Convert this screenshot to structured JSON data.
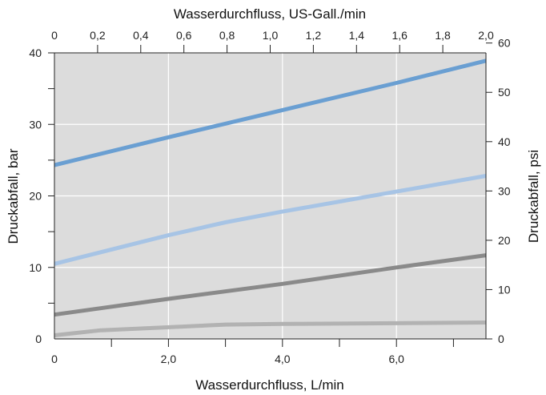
{
  "chart_data": {
    "type": "line",
    "title": "",
    "xlabel_bottom": "Wasserdurchfluss, L/min",
    "xlabel_top": "Wasserdurchfluss, US-Gall./min",
    "ylabel_left": "Druckabfall, bar",
    "ylabel_right": "Druckabfall, psi",
    "xlim_bottom": [
      0,
      7.57
    ],
    "xlim_top": [
      0,
      2.0
    ],
    "ylim_left": [
      0,
      40
    ],
    "ylim_right": [
      0,
      58
    ],
    "x_ticks_bottom": [
      0,
      1,
      2,
      3,
      4,
      5,
      6,
      7
    ],
    "x_ticklabels_bottom": [
      {
        "value": 0,
        "label": "0"
      },
      {
        "value": 2,
        "label": "2,0"
      },
      {
        "value": 4,
        "label": "4,0"
      },
      {
        "value": 6,
        "label": "6,0"
      }
    ],
    "x_ticks_top": [
      {
        "value": 0,
        "label": "0"
      },
      {
        "value": 0.2,
        "label": "0,2"
      },
      {
        "value": 0.4,
        "label": "0,4"
      },
      {
        "value": 0.6,
        "label": "0,6"
      },
      {
        "value": 0.8,
        "label": "0,8"
      },
      {
        "value": 1.0,
        "label": "1,0"
      },
      {
        "value": 1.2,
        "label": "1,2"
      },
      {
        "value": 1.4,
        "label": "1,4"
      },
      {
        "value": 1.6,
        "label": "1,6"
      },
      {
        "value": 1.8,
        "label": "1,8"
      },
      {
        "value": 2.0,
        "label": "2,0"
      }
    ],
    "y_ticks_left": [
      0,
      5,
      10,
      15,
      20,
      25,
      30,
      35,
      40
    ],
    "y_ticklabels_left": [
      {
        "value": 0,
        "label": "0"
      },
      {
        "value": 10,
        "label": "10"
      },
      {
        "value": 20,
        "label": "20"
      },
      {
        "value": 30,
        "label": "30"
      },
      {
        "value": 40,
        "label": "40"
      }
    ],
    "y_ticks_right": [
      {
        "value": 0,
        "label": "0"
      },
      {
        "value": 10,
        "label": "10"
      },
      {
        "value": 20,
        "label": "20"
      },
      {
        "value": 30,
        "label": "30"
      },
      {
        "value": 40,
        "label": "40"
      },
      {
        "value": 50,
        "label": "50"
      },
      {
        "value": 60,
        "label": "60"
      }
    ],
    "grid": true,
    "vertical_gridlines_x": [
      2,
      4,
      6
    ],
    "colors": {
      "plot_background": "#dcdcdc",
      "grid": "#ffffff",
      "axis": "#222222"
    },
    "series": [
      {
        "color": "#6a9fd2",
        "x": [
          0,
          2,
          4,
          6,
          7.57
        ],
        "y": [
          24.3,
          28.2,
          32.0,
          35.8,
          38.9
        ]
      },
      {
        "color": "#a7c4e5",
        "x": [
          0,
          2,
          3,
          4,
          6,
          7.57
        ],
        "y": [
          10.5,
          14.5,
          16.3,
          17.8,
          20.6,
          22.8
        ]
      },
      {
        "color": "#8a8a8a",
        "x": [
          0,
          2,
          4,
          6,
          7.57
        ],
        "y": [
          3.4,
          5.6,
          7.7,
          10.0,
          11.7
        ]
      },
      {
        "color": "#b2b2b2",
        "x": [
          0,
          0.8,
          3,
          4,
          6,
          7.57
        ],
        "y": [
          0.5,
          1.2,
          2.0,
          2.1,
          2.2,
          2.3
        ]
      }
    ]
  }
}
